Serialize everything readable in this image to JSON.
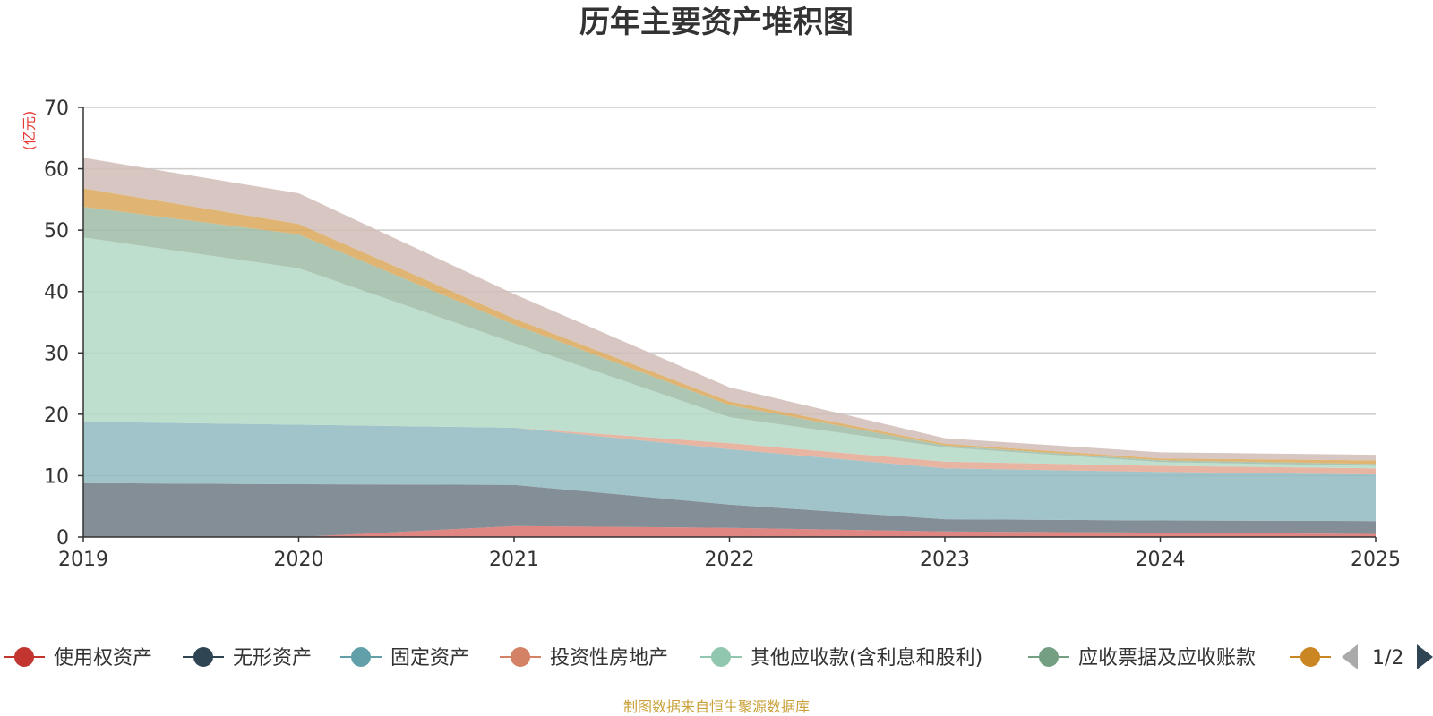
{
  "chart_data": {
    "type": "area",
    "stacked": true,
    "title": "历年主要资产堆积图",
    "ylabel": "(亿元)",
    "xlabel": "",
    "ylim": [
      0,
      70
    ],
    "yticks": [
      0,
      10,
      20,
      30,
      40,
      50,
      60,
      70
    ],
    "x": [
      "2019",
      "2020",
      "2021",
      "2022",
      "2023",
      "2024",
      "2025"
    ],
    "series": [
      {
        "name": "使用权资产",
        "color": "#c23531",
        "fill": "#d9706c",
        "values": [
          0,
          0,
          1.8,
          1.5,
          0.9,
          0.7,
          0.5
        ]
      },
      {
        "name": "无形资产",
        "color": "#2f4554",
        "fill": "#6e7a85",
        "values": [
          8.8,
          8.6,
          6.7,
          3.8,
          2.0,
          2.0,
          2.1
        ]
      },
      {
        "name": "固定资产",
        "color": "#61a0a8",
        "fill": "#8fbac0",
        "values": [
          10.0,
          9.7,
          9.3,
          9.0,
          8.3,
          7.9,
          7.6
        ]
      },
      {
        "name": "投资性房地产",
        "color": "#d48265",
        "fill": "#e4a893",
        "values": [
          0,
          0,
          0,
          1.0,
          1.1,
          1.0,
          1.0
        ]
      },
      {
        "name": "其他应收款(含利息和股利)",
        "color": "#91c7ae",
        "fill": "#b3d9c5",
        "values": [
          30.0,
          25.5,
          13.8,
          4.2,
          2.3,
          0.6,
          0.4
        ]
      },
      {
        "name": "应收票据及应收账款",
        "color": "#749f83",
        "fill": "#9fbca7",
        "values": [
          5.0,
          5.5,
          3.0,
          2.0,
          0.3,
          0.3,
          0.3
        ]
      },
      {
        "name": "",
        "color": "#ca8622",
        "fill": "#dba85b",
        "values": [
          3.0,
          1.7,
          1.0,
          0.6,
          0.3,
          0.3,
          0.6
        ]
      },
      {
        "name": "",
        "color": "#bda29a",
        "fill": "#d0bcb6",
        "values": [
          5.0,
          5.0,
          4.0,
          2.3,
          0.9,
          1.0,
          0.9
        ]
      }
    ]
  },
  "legend": {
    "page": "1/2",
    "visible_items": [
      "使用权资产",
      "无形资产",
      "固定资产",
      "投资性房地产",
      "其他应收款(含利息和股利)",
      "应收票据及应收账款",
      ""
    ],
    "prev_icon": "triangle-left-icon",
    "next_icon": "triangle-right-icon"
  },
  "source_text": "制图数据来自恒生聚源数据库"
}
